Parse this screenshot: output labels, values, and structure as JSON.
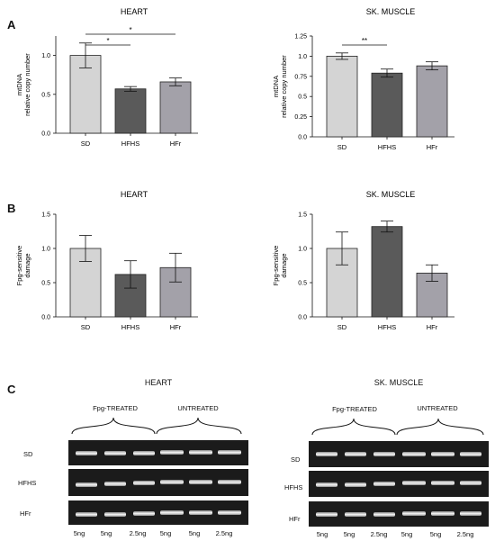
{
  "panels": [
    {
      "letter": "A"
    },
    {
      "letter": "B"
    },
    {
      "letter": "C"
    }
  ],
  "chart_data": [
    {
      "type": "bar",
      "title": "HEART",
      "ylabel": [
        "mtDNA",
        "relative copy number"
      ],
      "categories": [
        "SD",
        "HFHS",
        "HFr"
      ],
      "values": [
        1.0,
        0.57,
        0.66
      ],
      "errors": [
        0.16,
        0.03,
        0.05
      ],
      "ylim": [
        0,
        1.25
      ],
      "yticks": [
        0.0,
        0.5,
        1.0
      ],
      "ytick_labels": [
        "0.0",
        "0.5",
        "1.0"
      ],
      "colors": [
        "#d4d4d4",
        "#5a5a5a",
        "#a3a1a9"
      ],
      "significance": [
        {
          "from": 0,
          "to": 1,
          "label": "*"
        },
        {
          "from": 0,
          "to": 2,
          "label": "*"
        }
      ]
    },
    {
      "type": "bar",
      "title": "SK. MUSCLE",
      "ylabel": [
        "mtDNA",
        "relative copy number"
      ],
      "categories": [
        "SD",
        "HFHS",
        "HFr"
      ],
      "values": [
        1.0,
        0.79,
        0.88
      ],
      "errors": [
        0.04,
        0.05,
        0.05
      ],
      "ylim": [
        0,
        1.25
      ],
      "yticks": [
        0.0,
        0.25,
        0.5,
        0.75,
        1.0,
        1.25
      ],
      "ytick_labels": [
        "0.0",
        "0.25",
        "0.5",
        "0.75",
        "1.0",
        "1.25"
      ],
      "colors": [
        "#d4d4d4",
        "#5a5a5a",
        "#a3a1a9"
      ],
      "significance": [
        {
          "from": 0,
          "to": 1,
          "label": "**"
        }
      ]
    },
    {
      "type": "bar",
      "title": "HEART",
      "ylabel": [
        "Fpg-sensitive",
        "damage"
      ],
      "categories": [
        "SD",
        "HFHS",
        "HFr"
      ],
      "values": [
        1.0,
        0.62,
        0.72
      ],
      "errors": [
        0.19,
        0.2,
        0.21
      ],
      "ylim": [
        0,
        1.5
      ],
      "yticks": [
        0.0,
        0.5,
        1.0,
        1.5
      ],
      "ytick_labels": [
        "0.0",
        "0.5",
        "1.0",
        "1.5"
      ],
      "colors": [
        "#d4d4d4",
        "#5a5a5a",
        "#a3a1a9"
      ],
      "significance": []
    },
    {
      "type": "bar",
      "title": "SK. MUSCLE",
      "ylabel": [
        "Fpg-sensitive",
        "damage"
      ],
      "categories": [
        "SD",
        "HFHS",
        "HFr"
      ],
      "values": [
        1.0,
        1.32,
        0.64
      ],
      "errors": [
        0.24,
        0.08,
        0.12
      ],
      "ylim": [
        0,
        1.5
      ],
      "yticks": [
        0.0,
        0.5,
        1.0,
        1.5
      ],
      "ytick_labels": [
        "0.0",
        "0.5",
        "1.0",
        "1.5"
      ],
      "colors": [
        "#d4d4d4",
        "#5a5a5a",
        "#a3a1a9"
      ],
      "significance": []
    }
  ],
  "gels": [
    {
      "title": "HEART",
      "groups": [
        "Fpg-TREATED",
        "UNTREATED"
      ],
      "rows": [
        "SD",
        "HFHS",
        "HFr"
      ],
      "lanes": [
        "5ng",
        "5ng",
        "2.5ng",
        "5ng",
        "5ng",
        "2.5ng"
      ]
    },
    {
      "title": "SK. MUSCLE",
      "groups": [
        "Fpg-TREATED",
        "UNTREATED"
      ],
      "rows": [
        "SD",
        "HFHS",
        "HFr"
      ],
      "lanes": [
        "5ng",
        "5ng",
        "2.5ng",
        "5ng",
        "5ng",
        "2.5ng"
      ]
    }
  ]
}
